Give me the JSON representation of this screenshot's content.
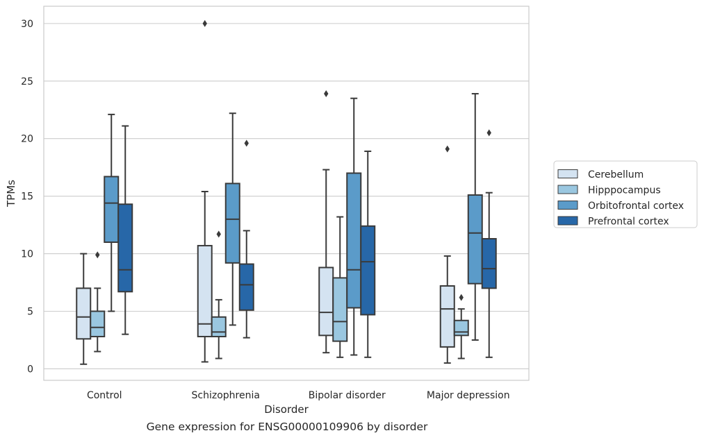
{
  "caption": "Gene expression for ENSG00000109906 by disorder",
  "chart_data": {
    "type": "box",
    "title": "",
    "xlabel": "Disorder",
    "ylabel": "TPMs",
    "ylim": [
      -1,
      31.5
    ],
    "yticks": [
      0,
      5,
      10,
      15,
      20,
      25,
      30
    ],
    "grid": "horizontal",
    "legend_position": "right",
    "categories": [
      "Control",
      "Schizophrenia",
      "Bipolar disorder",
      "Major depression"
    ],
    "series": [
      {
        "name": "Cerebellum",
        "color": "#d4e3f1",
        "boxes": [
          {
            "whislo": 0.4,
            "q1": 2.6,
            "med": 4.5,
            "q3": 7.0,
            "whishi": 10.0,
            "fliers": []
          },
          {
            "whislo": 0.6,
            "q1": 2.8,
            "med": 3.9,
            "q3": 10.7,
            "whishi": 15.4,
            "fliers": [
              30.0
            ]
          },
          {
            "whislo": 1.4,
            "q1": 2.9,
            "med": 4.9,
            "q3": 8.8,
            "whishi": 17.3,
            "fliers": [
              23.9
            ]
          },
          {
            "whislo": 0.5,
            "q1": 1.9,
            "med": 5.2,
            "q3": 7.2,
            "whishi": 9.8,
            "fliers": [
              19.1
            ]
          }
        ]
      },
      {
        "name": "Hipppocampus",
        "color": "#9ac7e0",
        "boxes": [
          {
            "whislo": 1.5,
            "q1": 2.8,
            "med": 3.6,
            "q3": 5.0,
            "whishi": 7.0,
            "fliers": [
              9.9
            ]
          },
          {
            "whislo": 0.9,
            "q1": 2.8,
            "med": 3.2,
            "q3": 4.5,
            "whishi": 6.0,
            "fliers": [
              11.7
            ]
          },
          {
            "whislo": 1.0,
            "q1": 2.4,
            "med": 4.1,
            "q3": 7.9,
            "whishi": 13.2,
            "fliers": []
          },
          {
            "whislo": 0.9,
            "q1": 2.9,
            "med": 3.2,
            "q3": 4.2,
            "whishi": 5.2,
            "fliers": [
              6.2
            ]
          }
        ]
      },
      {
        "name": "Orbitofrontal cortex",
        "color": "#5b9bc9",
        "boxes": [
          {
            "whislo": 5.0,
            "q1": 11.0,
            "med": 14.4,
            "q3": 16.7,
            "whishi": 22.1,
            "fliers": []
          },
          {
            "whislo": 3.8,
            "q1": 9.2,
            "med": 13.0,
            "q3": 16.1,
            "whishi": 22.2,
            "fliers": []
          },
          {
            "whislo": 1.2,
            "q1": 5.3,
            "med": 8.6,
            "q3": 17.0,
            "whishi": 23.5,
            "fliers": []
          },
          {
            "whislo": 2.5,
            "q1": 7.4,
            "med": 11.8,
            "q3": 15.1,
            "whishi": 23.9,
            "fliers": []
          }
        ]
      },
      {
        "name": "Prefrontal cortex",
        "color": "#2767a8",
        "boxes": [
          {
            "whislo": 3.0,
            "q1": 6.7,
            "med": 8.6,
            "q3": 14.3,
            "whishi": 21.1,
            "fliers": []
          },
          {
            "whislo": 2.7,
            "q1": 5.1,
            "med": 7.3,
            "q3": 9.1,
            "whishi": 12.0,
            "fliers": [
              19.6
            ]
          },
          {
            "whislo": 1.0,
            "q1": 4.7,
            "med": 9.3,
            "q3": 12.4,
            "whishi": 18.9,
            "fliers": []
          },
          {
            "whislo": 1.0,
            "q1": 7.0,
            "med": 8.7,
            "q3": 11.3,
            "whishi": 15.3,
            "fliers": [
              20.5
            ]
          }
        ]
      }
    ]
  }
}
